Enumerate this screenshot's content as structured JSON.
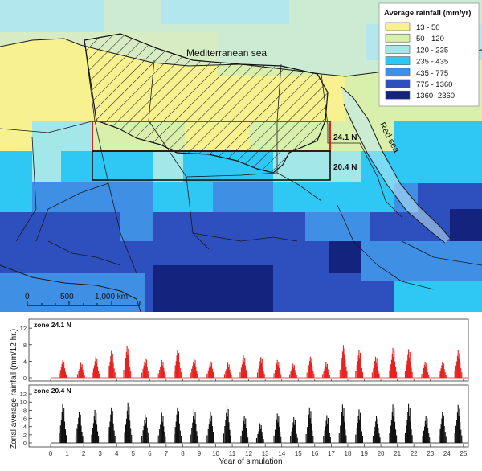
{
  "map": {
    "sea_label": "Mediterranean sea",
    "red_sea_label": "Red sea",
    "zone_labels": [
      "24.1 N",
      "20.4 N"
    ],
    "scale_ticks": [
      "0",
      "500",
      "1,000 km"
    ],
    "rainfall_colors": {
      "c13_50": "#f7f28f",
      "c50_120": "#d9f0ad",
      "c120_235": "#a3e7e8",
      "c235_435": "#2fc8f5",
      "c435_775": "#3f8fe5",
      "c775_1360": "#2e4fbe",
      "c1360_2360": "#14237e"
    }
  },
  "legend": {
    "title": "Average rainfall (mm/yr)",
    "items": [
      {
        "label": "13 - 50",
        "color": "#f7f28f"
      },
      {
        "label": "50 - 120",
        "color": "#d9f0ad"
      },
      {
        "label": "120 - 235",
        "color": "#a3e7e8"
      },
      {
        "label": "235 - 435",
        "color": "#2fc8f5"
      },
      {
        "label": "435 - 775",
        "color": "#3f8fe5"
      },
      {
        "label": "775 - 1360",
        "color": "#2e4fbe"
      },
      {
        "label": "1360- 2360",
        "color": "#14237e"
      }
    ]
  },
  "chart_data": [
    {
      "type": "bar",
      "title": "zone 24.1 N",
      "xlabel": "Year of simulation",
      "ylabel": "Zonal average rainfall (mm/12 hr.)",
      "xlim": [
        0,
        25.3
      ],
      "ylim": [
        0,
        13
      ],
      "yticks": [
        0,
        4,
        8,
        12
      ],
      "color": "#e8201e",
      "series": [
        {
          "x": [
            0.75,
            1.85,
            2.75,
            3.7,
            4.65,
            5.75,
            6.75,
            7.7,
            8.7,
            9.7,
            10.75,
            11.7,
            12.75,
            13.75,
            14.7,
            15.75,
            16.7,
            17.75,
            18.7,
            19.7,
            20.75,
            21.7,
            22.7,
            23.75,
            24.7
          ],
          "y": [
            4.2,
            3.6,
            5.0,
            6.5,
            7.8,
            4.9,
            4.3,
            6.7,
            4.8,
            4.0,
            3.6,
            5.4,
            5.0,
            4.3,
            3.4,
            5.1,
            3.7,
            7.9,
            6.7,
            5.1,
            7.2,
            6.9,
            3.9,
            3.8,
            6.6
          ]
        }
      ]
    },
    {
      "type": "bar",
      "title": "zone 20.4 N",
      "xlabel": "Year of simulation",
      "ylabel": "Zonal average rainfall (mm/12 hr.)",
      "xlim": [
        0,
        25.3
      ],
      "ylim": [
        0,
        13
      ],
      "yticks": [
        0,
        2,
        4,
        6,
        8,
        10,
        12
      ],
      "color": "#111111",
      "series": [
        {
          "x": [
            0.75,
            1.75,
            2.7,
            3.7,
            4.7,
            5.75,
            6.75,
            7.7,
            8.7,
            9.7,
            10.7,
            11.75,
            12.7,
            13.75,
            14.75,
            15.7,
            16.75,
            17.7,
            18.7,
            19.75,
            20.75,
            21.7,
            22.75,
            23.75,
            24.7
          ],
          "y": [
            9.5,
            7.7,
            8.1,
            8.7,
            9.9,
            6.9,
            7.4,
            8.7,
            8.3,
            7.5,
            9.2,
            6.7,
            4.8,
            7.2,
            6.3,
            8.7,
            6.8,
            9.4,
            8.2,
            6.6,
            9.4,
            9.5,
            6.7,
            7.5,
            9.3
          ]
        }
      ]
    }
  ],
  "x_ticks": [
    0,
    1,
    2,
    3,
    4,
    5,
    6,
    7,
    8,
    9,
    10,
    11,
    12,
    13,
    14,
    15,
    16,
    17,
    18,
    19,
    20,
    21,
    22,
    23,
    24,
    25
  ]
}
